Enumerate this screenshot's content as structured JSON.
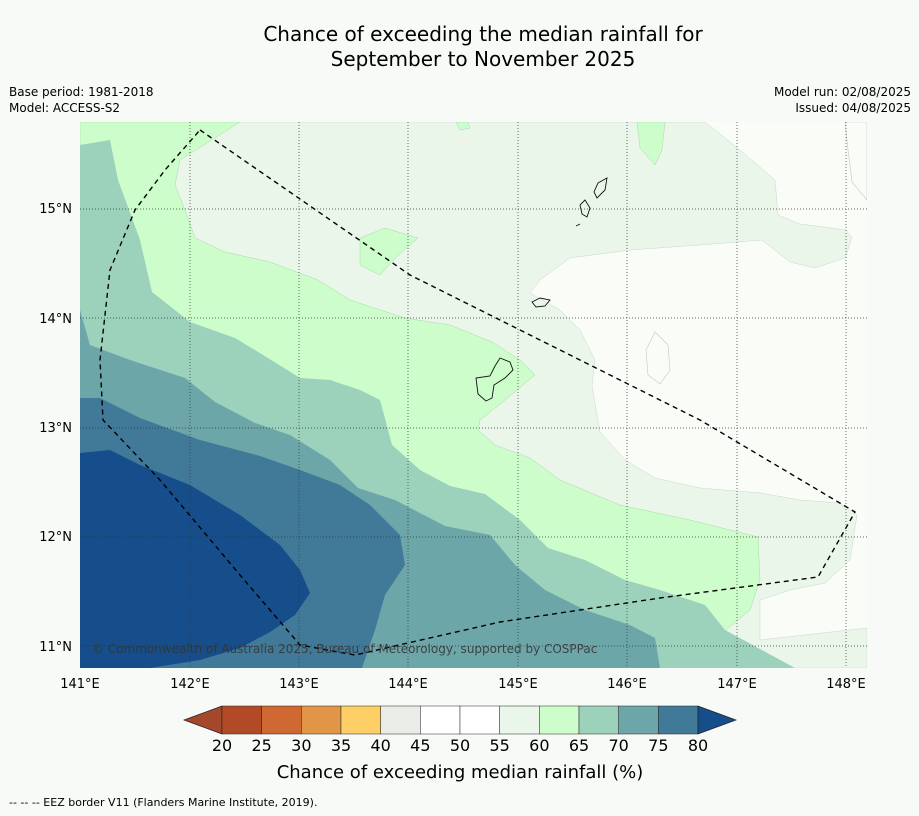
{
  "header": {
    "title_line1": "Chance of exceeding the median rainfall for",
    "title_line2": "September to November 2025",
    "base_period": "Base period: 1981-2018",
    "model": "Model: ACCESS-S2",
    "model_run": "Model run: 02/08/2025",
    "issued": "Issued: 04/08/2025"
  },
  "map": {
    "lon_labels": [
      "141°E",
      "142°E",
      "143°E",
      "144°E",
      "145°E",
      "146°E",
      "147°E",
      "148°E"
    ],
    "lat_labels": [
      "15°N",
      "14°N",
      "13°N",
      "12°N",
      "11°N"
    ],
    "copyright": "© Commonwealth of Australia 2025, Bureau of Meteorology, supported by COSPPac"
  },
  "colorbar": {
    "ticks": [
      "20",
      "25",
      "30",
      "35",
      "40",
      "45",
      "50",
      "55",
      "60",
      "65",
      "70",
      "75",
      "80"
    ],
    "colors": [
      "#b34a27",
      "#cf6833",
      "#e39547",
      "#fdcf66",
      "#eaece7",
      "#ffffff",
      "#ffffff",
      "#ebf6ea",
      "#ccfdcb",
      "#9cd1bb",
      "#6da6a8",
      "#417a98"
    ],
    "low_color": "#a4472a",
    "high_color": "#154e8a",
    "title": "Chance of exceeding median rainfall (%)"
  },
  "footnote": "--  --  -- EEZ border V11 (Flanders Marine Institute, 2019)."
}
